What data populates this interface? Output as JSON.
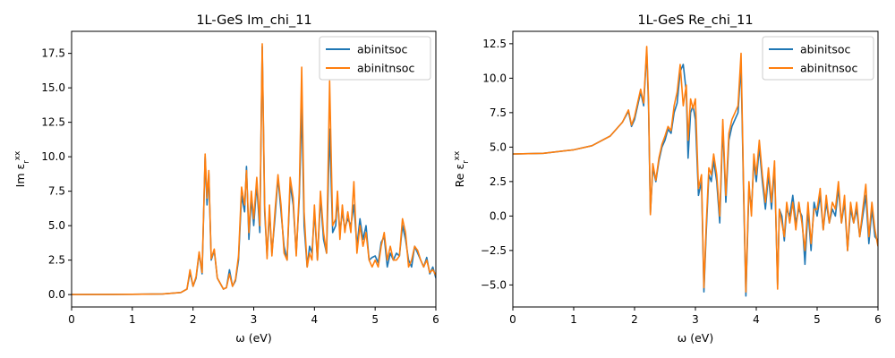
{
  "colors": {
    "abinitsoc": "#1f77b4",
    "abinitnsoc": "#ff7f0e"
  },
  "chart_data": [
    {
      "type": "line",
      "title": "1L-GeS Im_chi_11",
      "xlabel": "ω (eV)",
      "ylabel": "Im ε_r^xx",
      "ylabel_main": "Im ε",
      "ylabel_sub": "r",
      "ylabel_sup": "xx",
      "xlim": [
        0,
        6
      ],
      "ylim": [
        -0.9,
        19.1
      ],
      "xticks": [
        "0",
        "1",
        "2",
        "3",
        "4",
        "5",
        "6"
      ],
      "yticks": [
        "0.0",
        "2.5",
        "5.0",
        "7.5",
        "10.0",
        "12.5",
        "15.0",
        "17.5"
      ],
      "legend_position": "top-right",
      "series": [
        {
          "name": "abinitsoc",
          "color": "#1f77b4",
          "x": [
            0,
            1,
            1.5,
            1.8,
            1.9,
            1.95,
            2.0,
            2.05,
            2.1,
            2.15,
            2.2,
            2.23,
            2.26,
            2.3,
            2.35,
            2.4,
            2.45,
            2.5,
            2.55,
            2.6,
            2.65,
            2.7,
            2.75,
            2.8,
            2.85,
            2.88,
            2.92,
            2.96,
            3.0,
            3.05,
            3.1,
            3.14,
            3.18,
            3.22,
            3.26,
            3.3,
            3.35,
            3.4,
            3.45,
            3.5,
            3.55,
            3.6,
            3.65,
            3.7,
            3.75,
            3.79,
            3.83,
            3.88,
            3.92,
            3.96,
            4.0,
            4.05,
            4.1,
            4.15,
            4.2,
            4.25,
            4.3,
            4.35,
            4.38,
            4.42,
            4.46,
            4.5,
            4.55,
            4.6,
            4.65,
            4.7,
            4.75,
            4.8,
            4.85,
            4.9,
            4.95,
            5.0,
            5.05,
            5.1,
            5.15,
            5.2,
            5.25,
            5.3,
            5.35,
            5.4,
            5.45,
            5.5,
            5.55,
            5.6,
            5.65,
            5.7,
            5.75,
            5.8,
            5.85,
            5.9,
            5.95,
            6.0
          ],
          "values": [
            0.0,
            0.02,
            0.05,
            0.15,
            0.4,
            1.6,
            0.6,
            1.2,
            3.0,
            1.5,
            10.0,
            6.5,
            8.8,
            2.5,
            3.2,
            1.2,
            0.8,
            0.4,
            0.5,
            1.8,
            0.6,
            1.0,
            2.5,
            7.2,
            6.0,
            9.3,
            4.0,
            7.0,
            5.0,
            8.0,
            4.5,
            18.0,
            6.0,
            2.8,
            6.0,
            3.0,
            5.5,
            8.5,
            6.0,
            3.5,
            2.5,
            8.0,
            6.5,
            3.0,
            7.0,
            13.7,
            5.0,
            2.0,
            3.5,
            3.0,
            6.0,
            2.5,
            7.0,
            4.0,
            3.0,
            12.0,
            4.5,
            5.0,
            7.0,
            4.5,
            6.0,
            4.8,
            5.5,
            5.0,
            6.5,
            3.5,
            5.5,
            4.0,
            5.0,
            2.5,
            2.7,
            2.8,
            2.3,
            3.8,
            4.2,
            2.0,
            3.0,
            2.5,
            3.0,
            2.8,
            5.0,
            4.0,
            2.5,
            2.0,
            3.5,
            3.0,
            2.5,
            2.0,
            2.7,
            1.5,
            2.0,
            1.2
          ]
        },
        {
          "name": "abinitnsoc",
          "color": "#ff7f0e",
          "x": [
            0,
            1,
            1.5,
            1.8,
            1.9,
            1.95,
            2.0,
            2.05,
            2.1,
            2.15,
            2.2,
            2.23,
            2.26,
            2.3,
            2.35,
            2.4,
            2.45,
            2.5,
            2.55,
            2.6,
            2.65,
            2.7,
            2.75,
            2.8,
            2.85,
            2.88,
            2.92,
            2.96,
            3.0,
            3.05,
            3.1,
            3.14,
            3.18,
            3.22,
            3.26,
            3.3,
            3.35,
            3.4,
            3.45,
            3.5,
            3.55,
            3.6,
            3.65,
            3.7,
            3.75,
            3.79,
            3.83,
            3.88,
            3.92,
            3.96,
            4.0,
            4.05,
            4.1,
            4.15,
            4.2,
            4.25,
            4.3,
            4.35,
            4.38,
            4.42,
            4.46,
            4.5,
            4.55,
            4.6,
            4.65,
            4.7,
            4.75,
            4.8,
            4.85,
            4.9,
            4.95,
            5.0,
            5.05,
            5.1,
            5.15,
            5.2,
            5.25,
            5.3,
            5.35,
            5.4,
            5.45,
            5.5,
            5.55,
            5.6,
            5.65,
            5.7,
            5.75,
            5.8,
            5.85,
            5.9,
            5.95,
            6.0
          ],
          "values": [
            0.0,
            0.02,
            0.05,
            0.15,
            0.4,
            1.8,
            0.6,
            1.3,
            3.1,
            1.6,
            10.2,
            7.0,
            9.0,
            2.6,
            3.3,
            1.2,
            0.8,
            0.4,
            0.5,
            1.5,
            0.6,
            1.1,
            2.8,
            7.8,
            6.5,
            9.0,
            4.5,
            7.5,
            5.5,
            8.5,
            5.0,
            18.2,
            6.5,
            2.6,
            6.5,
            2.8,
            6.0,
            8.7,
            6.5,
            3.0,
            2.5,
            8.5,
            7.0,
            2.8,
            7.5,
            16.5,
            6.0,
            2.0,
            3.0,
            2.5,
            6.5,
            2.5,
            7.5,
            4.5,
            3.0,
            15.5,
            5.0,
            5.5,
            7.5,
            4.0,
            6.5,
            4.5,
            6.0,
            4.5,
            8.2,
            3.0,
            5.0,
            3.5,
            4.5,
            2.5,
            2.0,
            2.5,
            2.0,
            3.5,
            4.5,
            2.5,
            3.5,
            2.5,
            2.5,
            2.8,
            5.5,
            4.5,
            2.0,
            2.5,
            3.5,
            3.2,
            2.5,
            2.0,
            2.5,
            1.6,
            1.8,
            1.4
          ]
        }
      ]
    },
    {
      "type": "line",
      "title": "1L-GeS Re_chi_11",
      "xlabel": "ω (eV)",
      "ylabel": "Re ε_r^xx",
      "ylabel_main": "Re ε",
      "ylabel_sub": "r",
      "ylabel_sup": "xx",
      "xlim": [
        0,
        6
      ],
      "ylim": [
        -6.6,
        13.4
      ],
      "xticks": [
        "0",
        "1",
        "2",
        "3",
        "4",
        "5",
        "6"
      ],
      "yticks": [
        "−5.0",
        "−2.5",
        "0.0",
        "2.5",
        "5.0",
        "7.5",
        "10.0",
        "12.5"
      ],
      "legend_position": "top-right",
      "series": [
        {
          "name": "abinitsoc",
          "color": "#1f77b4",
          "x": [
            0,
            0.5,
            1.0,
            1.3,
            1.6,
            1.8,
            1.9,
            1.95,
            2.0,
            2.05,
            2.1,
            2.15,
            2.2,
            2.23,
            2.26,
            2.3,
            2.35,
            2.4,
            2.45,
            2.5,
            2.55,
            2.6,
            2.65,
            2.7,
            2.75,
            2.8,
            2.85,
            2.88,
            2.92,
            2.96,
            3.0,
            3.05,
            3.1,
            3.14,
            3.18,
            3.22,
            3.26,
            3.3,
            3.35,
            3.4,
            3.45,
            3.5,
            3.55,
            3.6,
            3.65,
            3.7,
            3.75,
            3.79,
            3.83,
            3.88,
            3.92,
            3.96,
            4.0,
            4.05,
            4.1,
            4.15,
            4.2,
            4.25,
            4.3,
            4.35,
            4.38,
            4.42,
            4.46,
            4.5,
            4.55,
            4.6,
            4.65,
            4.7,
            4.75,
            4.8,
            4.85,
            4.9,
            4.95,
            5.0,
            5.05,
            5.1,
            5.15,
            5.2,
            5.25,
            5.3,
            5.35,
            5.4,
            5.45,
            5.5,
            5.55,
            5.6,
            5.65,
            5.7,
            5.75,
            5.8,
            5.85,
            5.9,
            5.95,
            6.0
          ],
          "values": [
            4.5,
            4.55,
            4.8,
            5.1,
            5.8,
            6.8,
            7.6,
            6.5,
            7.0,
            8.0,
            9.0,
            8.0,
            12.0,
            8.0,
            0.2,
            3.5,
            2.5,
            4.0,
            5.0,
            5.5,
            6.3,
            6.0,
            7.5,
            8.2,
            10.5,
            11.0,
            9.0,
            4.2,
            7.5,
            8.0,
            7.0,
            1.5,
            2.5,
            -5.5,
            -1.0,
            3.0,
            2.5,
            4.0,
            2.5,
            -0.5,
            6.5,
            1.0,
            5.5,
            6.5,
            7.0,
            7.5,
            11.0,
            2.0,
            -5.8,
            2.0,
            0.5,
            4.0,
            2.5,
            5.0,
            2.5,
            0.5,
            3.0,
            0.5,
            3.5,
            -5.0,
            0.5,
            0.0,
            -1.8,
            0.5,
            0.0,
            1.5,
            -0.5,
            0.5,
            0.0,
            -3.5,
            0.5,
            -2.5,
            1.0,
            0.0,
            1.5,
            -1.0,
            1.0,
            -0.5,
            0.5,
            0.0,
            2.0,
            -0.5,
            1.0,
            -2.5,
            0.5,
            -0.5,
            0.5,
            -1.5,
            0.0,
            1.5,
            -2.0,
            0.5,
            -1.5,
            -1.8
          ]
        },
        {
          "name": "abinitnsoc",
          "color": "#ff7f0e",
          "x": [
            0,
            0.5,
            1.0,
            1.3,
            1.6,
            1.8,
            1.9,
            1.95,
            2.0,
            2.05,
            2.1,
            2.15,
            2.2,
            2.23,
            2.26,
            2.3,
            2.35,
            2.4,
            2.45,
            2.5,
            2.55,
            2.6,
            2.65,
            2.7,
            2.75,
            2.8,
            2.85,
            2.88,
            2.92,
            2.96,
            3.0,
            3.05,
            3.1,
            3.14,
            3.18,
            3.22,
            3.26,
            3.3,
            3.35,
            3.4,
            3.45,
            3.5,
            3.55,
            3.6,
            3.65,
            3.7,
            3.75,
            3.79,
            3.83,
            3.88,
            3.92,
            3.96,
            4.0,
            4.05,
            4.1,
            4.15,
            4.2,
            4.25,
            4.3,
            4.35,
            4.38,
            4.42,
            4.46,
            4.5,
            4.55,
            4.6,
            4.65,
            4.7,
            4.75,
            4.8,
            4.85,
            4.9,
            4.95,
            5.0,
            5.05,
            5.1,
            5.15,
            5.2,
            5.25,
            5.3,
            5.35,
            5.4,
            5.45,
            5.5,
            5.55,
            5.6,
            5.65,
            5.7,
            5.75,
            5.8,
            5.85,
            5.9,
            5.95,
            6.0
          ],
          "values": [
            4.5,
            4.55,
            4.8,
            5.1,
            5.8,
            6.8,
            7.7,
            6.6,
            7.2,
            8.2,
            9.2,
            8.2,
            12.3,
            8.5,
            0.1,
            3.8,
            2.6,
            4.2,
            5.2,
            5.8,
            6.5,
            6.2,
            8.0,
            9.0,
            11.0,
            8.0,
            9.5,
            5.5,
            8.5,
            7.8,
            8.5,
            2.0,
            3.0,
            -5.2,
            -0.5,
            3.5,
            3.0,
            4.5,
            3.0,
            0.0,
            7.0,
            1.5,
            6.0,
            7.0,
            7.5,
            8.0,
            11.8,
            2.5,
            -5.5,
            2.5,
            0.0,
            4.5,
            3.0,
            5.5,
            3.0,
            1.0,
            3.5,
            1.0,
            4.0,
            -5.3,
            0.5,
            -0.5,
            -1.5,
            1.0,
            -0.5,
            1.0,
            -1.0,
            1.0,
            -0.5,
            -2.5,
            1.0,
            -2.0,
            0.5,
            0.5,
            2.0,
            -1.0,
            1.5,
            -0.5,
            1.0,
            0.5,
            2.5,
            -0.5,
            1.5,
            -2.5,
            1.0,
            -0.5,
            1.0,
            -1.5,
            0.5,
            2.3,
            -1.5,
            1.0,
            -1.0,
            -2.2
          ]
        }
      ]
    }
  ]
}
